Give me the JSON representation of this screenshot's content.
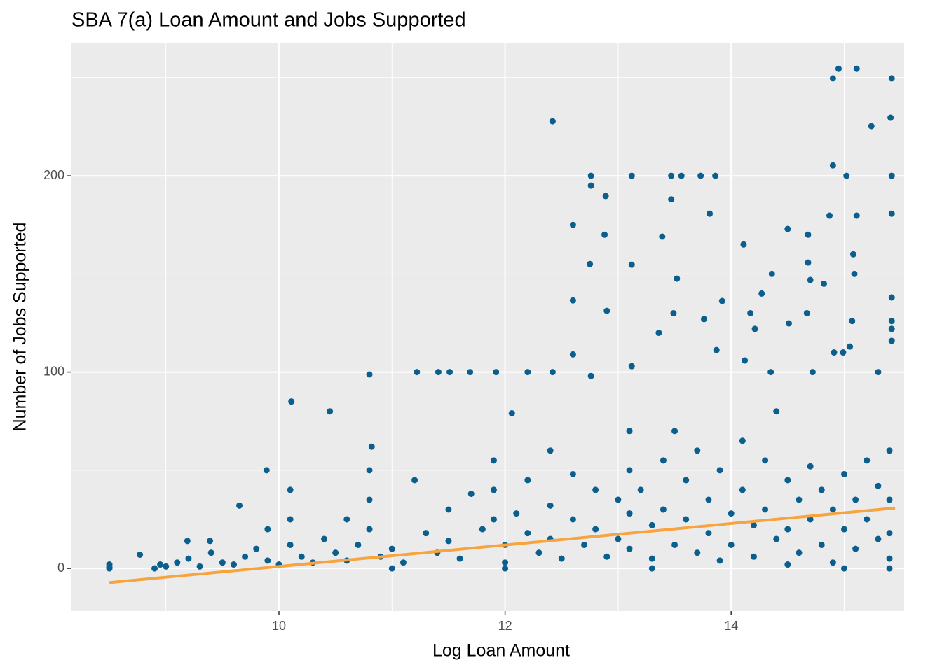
{
  "chart_data": {
    "type": "scatter",
    "title": "SBA 7(a) Loan Amount and Jobs Supported",
    "x_label": "Log Loan Amount",
    "y_label": "Number of Jobs Supported",
    "color": "#0a5f8e",
    "xlim": [
      8.165,
      15.53
    ],
    "ylim": [
      -21.7,
      267.4
    ],
    "xticks": [
      10,
      12,
      14
    ],
    "yticks": [
      0,
      100,
      200
    ],
    "grid": true,
    "x": [
      14.95,
      14.9,
      15.11,
      15.42,
      15.41,
      15.24,
      12.42,
      12.76,
      13.12,
      13.47,
      13.56,
      13.73,
      13.86,
      15.02,
      15.42,
      14.9,
      12.76,
      12.89,
      13.47,
      13.81,
      14.87,
      15.11,
      15.42,
      12.6,
      12.88,
      13.39,
      14.5,
      14.68,
      14.11,
      15.08,
      14.68,
      12.75,
      13.12,
      14.36,
      15.09,
      13.52,
      14.7,
      14.82,
      14.27,
      13.92,
      12.6,
      12.9,
      13.49,
      14.67,
      14.17,
      13.76,
      15.07,
      15.42,
      14.51,
      14.21,
      13.36,
      15.42,
      13.87,
      15.05,
      15.42,
      15.42,
      12.6,
      13.12,
      14.12,
      14.91,
      14.99,
      11.22,
      11.41,
      11.51,
      11.69,
      11.92,
      12.2,
      12.42,
      12.76,
      10.8,
      14.35,
      14.72,
      15.3,
      10.11,
      10.45,
      9.89,
      9.65,
      8.5,
      8.77,
      8.95,
      9.19,
      9.39,
      12.06,
      10.82,
      8.5,
      8.5,
      8.9,
      9.0,
      9.1,
      9.2,
      9.3,
      9.4,
      9.5,
      9.6,
      9.7,
      9.8,
      9.9,
      9.9,
      10.0,
      10.1,
      10.1,
      10.1,
      10.2,
      10.3,
      10.4,
      10.5,
      10.6,
      10.6,
      10.7,
      10.8,
      10.8,
      10.8,
      10.9,
      11.0,
      11.1,
      11.2,
      11.3,
      11.4,
      11.5,
      11.5,
      11.6,
      11.7,
      11.8,
      11.9,
      11.9,
      11.9,
      12.0,
      12.0,
      12.1,
      12.2,
      12.2,
      12.3,
      12.4,
      12.4,
      12.4,
      12.5,
      12.6,
      12.6,
      12.7,
      12.8,
      12.8,
      12.9,
      13.0,
      13.0,
      13.1,
      13.1,
      13.1,
      13.1,
      13.2,
      13.3,
      13.3,
      13.4,
      13.4,
      13.5,
      13.5,
      13.6,
      13.6,
      13.7,
      13.7,
      13.8,
      13.8,
      13.9,
      13.9,
      14.0,
      14.0,
      14.1,
      14.1,
      14.2,
      14.2,
      14.3,
      14.3,
      14.4,
      14.4,
      14.5,
      14.5,
      14.6,
      14.6,
      14.7,
      14.7,
      14.8,
      14.8,
      14.9,
      14.9,
      15.0,
      15.0,
      15.1,
      15.1,
      15.2,
      15.2,
      15.3,
      15.3,
      15.4,
      15.4,
      15.4,
      15.4,
      15.4,
      13.3,
      12.0,
      11.0,
      14.5,
      15.0
    ],
    "values": [
      254.5,
      249.6,
      254.5,
      249.6,
      229.6,
      225.3,
      227.8,
      200,
      200,
      200,
      200,
      200,
      200,
      200,
      200,
      205.3,
      195,
      189.7,
      188,
      180.7,
      179.7,
      179.7,
      180.7,
      175,
      170,
      169,
      172.9,
      170,
      165,
      160,
      155.8,
      155,
      154.7,
      150,
      150,
      147.6,
      146.9,
      145,
      140,
      136.2,
      136.5,
      131.2,
      130,
      130,
      130,
      127,
      126,
      126,
      124.8,
      122,
      120,
      115.9,
      111.2,
      113,
      122,
      138,
      109,
      103,
      105.9,
      110,
      110,
      100,
      100,
      100,
      100,
      100,
      100,
      100,
      98,
      98.8,
      100,
      100,
      100,
      85,
      80,
      50,
      32,
      0.7,
      7,
      2,
      14,
      14,
      79,
      62,
      0,
      2,
      0,
      1,
      3,
      5,
      1,
      8,
      3,
      2,
      6,
      10,
      20,
      4,
      2,
      40,
      25,
      12,
      6,
      3,
      15,
      8,
      4,
      25,
      12,
      50,
      35,
      20,
      6,
      10,
      3,
      45,
      18,
      8,
      30,
      14,
      5,
      38,
      20,
      55,
      40,
      25,
      12,
      3,
      28,
      45,
      18,
      8,
      60,
      32,
      15,
      5,
      48,
      25,
      12,
      40,
      20,
      6,
      35,
      15,
      70,
      50,
      28,
      10,
      40,
      22,
      5,
      55,
      30,
      12,
      70,
      45,
      25,
      8,
      60,
      35,
      18,
      50,
      4,
      28,
      12,
      65,
      40,
      22,
      6,
      55,
      30,
      15,
      80,
      45,
      20,
      35,
      8,
      52,
      25,
      12,
      40,
      30,
      3,
      48,
      20,
      35,
      10,
      55,
      25,
      42,
      15,
      60,
      35,
      18,
      5,
      0,
      0,
      0,
      0,
      2,
      0
    ],
    "trend": {
      "color": "#f7a440",
      "x": [
        8.5,
        15.45
      ],
      "values": [
        -7.2,
        30.8
      ]
    }
  }
}
